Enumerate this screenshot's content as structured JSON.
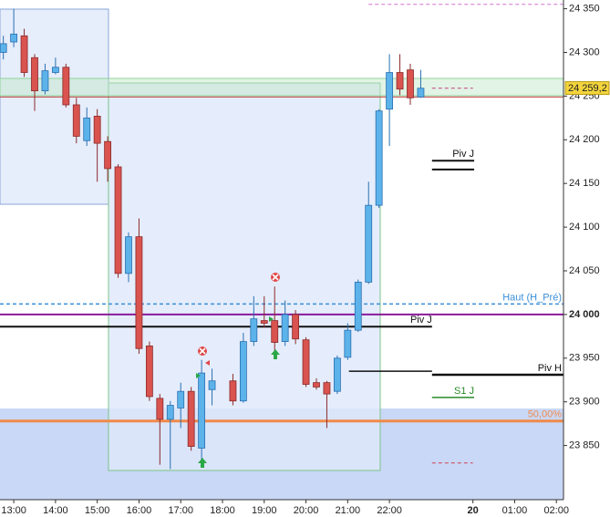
{
  "chart_data": {
    "type": "candlestick",
    "x": [
      12.75,
      13,
      13.25,
      13.5,
      13.75,
      14,
      14.25,
      14.5,
      14.75,
      15,
      15.25,
      15.5,
      15.75,
      16,
      16.25,
      16.5,
      16.75,
      17,
      17.25,
      17.5,
      17.75,
      18.25,
      18.5,
      18.75,
      19,
      19.25,
      19.5,
      19.75,
      20,
      20.25,
      20.5,
      20.75,
      21,
      21.25,
      21.5,
      21.75,
      22,
      22.25,
      22.5,
      22.75
    ],
    "open": [
      24300,
      24312,
      24319,
      24294,
      24256,
      24277,
      24283,
      24240,
      24199,
      24227,
      24198,
      24169,
      24047,
      24089,
      23964,
      23904,
      23880,
      23893,
      23912,
      23847,
      23914,
      23924,
      23901,
      23969,
      23993,
      23993,
      23969,
      24000,
      23971,
      23922,
      23922,
      23912,
      23951,
      23982,
      24037,
      24125,
      24235,
      24277,
      24280,
      24249
    ],
    "high": [
      24319,
      24350,
      24327,
      24298,
      24287,
      24294,
      24287,
      24248,
      24237,
      24235,
      24204,
      24172,
      24094,
      24110,
      23969,
      23909,
      23901,
      23922,
      23917,
      23948,
      23938,
      23932,
      23979,
      24021,
      24021,
      24032,
      24016,
      24005,
      23974,
      23927,
      23924,
      23953,
      23990,
      24040,
      24152,
      24235,
      24298,
      24298,
      24287,
      24280
    ],
    "low": [
      24292,
      24306,
      24272,
      24233,
      24252,
      24275,
      24237,
      24196,
      24193,
      24152,
      24152,
      24042,
      24037,
      23955,
      23901,
      23828,
      23823,
      23870,
      23844,
      23828,
      23896,
      23896,
      23899,
      23964,
      23985,
      23958,
      23964,
      23966,
      23917,
      23914,
      23870,
      23909,
      23948,
      23980,
      24035,
      24122,
      24193,
      24251,
      24240,
      24248
    ],
    "close": [
      24310,
      24321,
      24277,
      24256,
      24279,
      24283,
      24240,
      24204,
      24225,
      24196,
      24167,
      24047,
      24089,
      23961,
      23906,
      23880,
      23896,
      23912,
      23849,
      23933,
      23924,
      23901,
      23969,
      23995,
      23990,
      23968,
      24000,
      23972,
      23920,
      23917,
      23909,
      23950,
      23982,
      24037,
      24125,
      24233,
      24277,
      24258,
      24248,
      24259
    ],
    "up_color": "#5cb3ea",
    "down_color": "#d9534f",
    "xlim": [
      12.67,
      26.17
    ],
    "ylim": [
      23788,
      24360
    ],
    "xticks": [
      {
        "value": 13,
        "label": "13:00"
      },
      {
        "value": 14,
        "label": "14:00"
      },
      {
        "value": 15,
        "label": "15:00"
      },
      {
        "value": 16,
        "label": "16:00"
      },
      {
        "value": 17,
        "label": "17:00"
      },
      {
        "value": 18,
        "label": "18:00"
      },
      {
        "value": 19,
        "label": "19:00"
      },
      {
        "value": 20,
        "label": "20:00"
      },
      {
        "value": 21,
        "label": "21:00"
      },
      {
        "value": 22,
        "label": "22:00"
      },
      {
        "value": 24,
        "label": "20",
        "bold": true
      },
      {
        "value": 25,
        "label": "01:00"
      },
      {
        "value": 26,
        "label": "02:00"
      }
    ],
    "yticks": [
      {
        "value": 23850,
        "label": "23 850"
      },
      {
        "value": 23900,
        "label": "23 900"
      },
      {
        "value": 23950,
        "label": "23 950"
      },
      {
        "value": 24000,
        "label": "24 000",
        "bold": true
      },
      {
        "value": 24050,
        "label": "24 050"
      },
      {
        "value": 24100,
        "label": "24 100"
      },
      {
        "value": 24150,
        "label": "24 150"
      },
      {
        "value": 24200,
        "label": "24 200"
      },
      {
        "value": 24250,
        "label": "24 250"
      },
      {
        "value": 24300,
        "label": "24 300"
      },
      {
        "value": 24350,
        "label": "24 350"
      }
    ],
    "last_price": 24259.2,
    "last_price_label": "24 259,2",
    "last_price_color": "#f3d43c",
    "levels": [
      {
        "value": 24176,
        "color": "#111111",
        "width": 2,
        "x_range": [
          23.02,
          24.03
        ],
        "label": "Piv J"
      },
      {
        "value": 24166,
        "color": "#111111",
        "width": 2,
        "x_range": [
          23.02,
          24.03
        ]
      },
      {
        "value": 24012,
        "color": "#3a8fd8",
        "width": 1.5,
        "dash": true,
        "label": "Haut (H_Pré)"
      },
      {
        "value": 24000,
        "color": "#8b1a9b",
        "width": 2
      },
      {
        "value": 23986,
        "color": "#111111",
        "width": 2,
        "x_range": [
          12.67,
          23.02
        ],
        "label": "Piv J"
      },
      {
        "value": 23935,
        "color": "#111111",
        "width": 1.5,
        "x_range": [
          21.03,
          23.02
        ]
      },
      {
        "value": 23931,
        "color": "#111111",
        "width": 2.5,
        "x_range": [
          23.02,
          26.17
        ],
        "label": "Piv H"
      },
      {
        "value": 23905,
        "color": "#2a8a2a",
        "width": 1.5,
        "x_range": [
          23.02,
          24.03
        ],
        "label": "S1 J"
      },
      {
        "value": 23878,
        "color": "#f08a4b",
        "width": 3,
        "label": "50,00%"
      },
      {
        "value": 24249,
        "color": "#c84040",
        "width": 1
      },
      {
        "value": 24259,
        "color": "#c84080",
        "width": 1,
        "dash": true,
        "x_range": [
          23.02,
          24.0
        ]
      },
      {
        "value": 23830,
        "color": "#d04050",
        "width": 1,
        "dash": true,
        "x_range": [
          23.02,
          24.0
        ]
      },
      {
        "value": 24355,
        "color": "#d070d0",
        "width": 1,
        "dash": true,
        "x_range": [
          21.5,
          26.17
        ]
      }
    ]
  }
}
